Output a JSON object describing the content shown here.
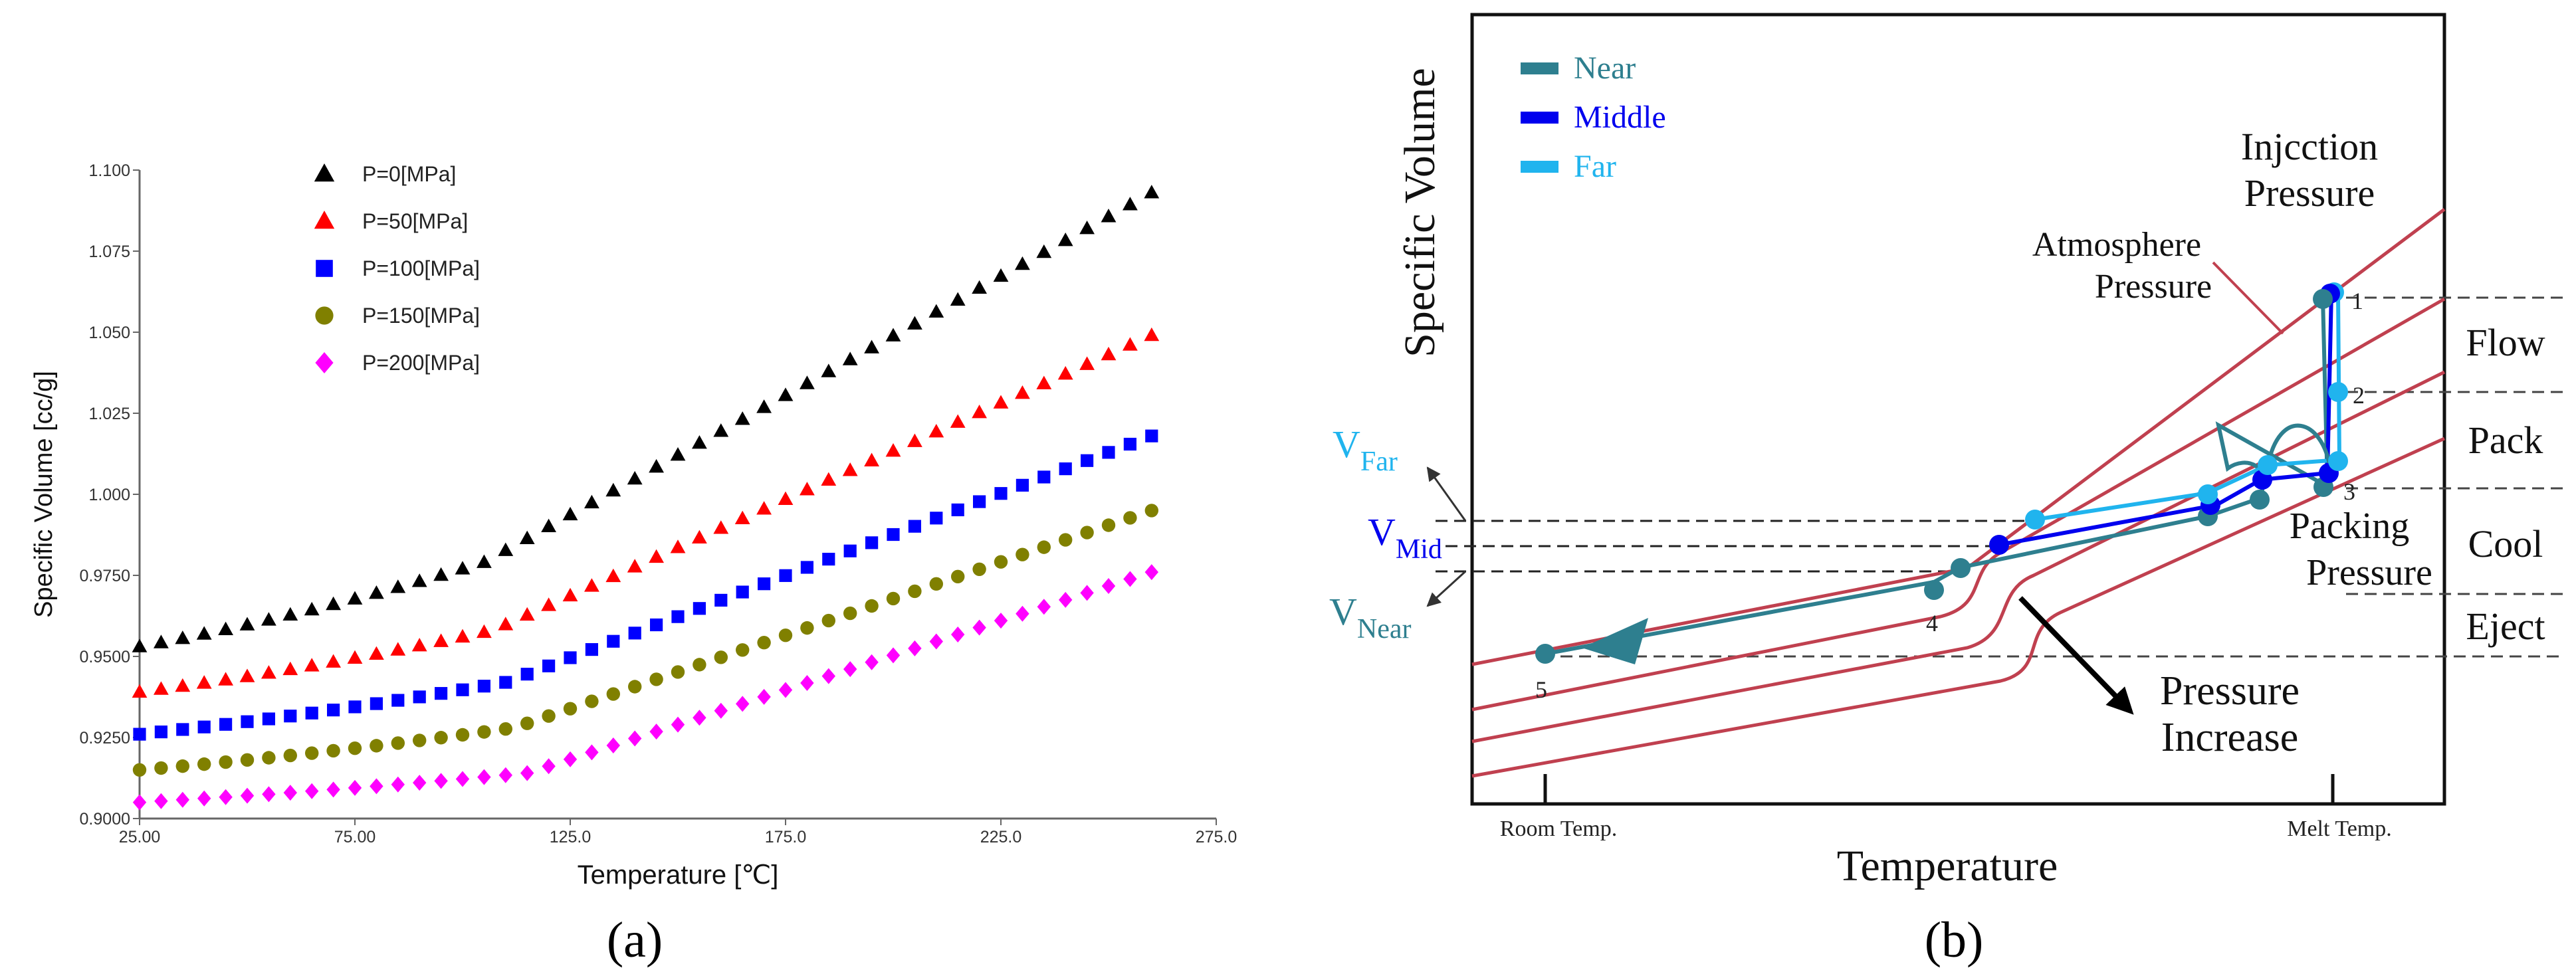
{
  "chart_data": [
    {
      "type": "scatter",
      "panel_label": "(a)",
      "xlabel": "Temperature [℃]",
      "ylabel": "Specific Volume [cc/g]",
      "xlim": [
        25,
        275
      ],
      "ylim": [
        0.9,
        1.1
      ],
      "x_ticks": [
        "25.00",
        "75.00",
        "125.0",
        "175.0",
        "225.0",
        "275.0"
      ],
      "x_tick_values": [
        25,
        75,
        125,
        175,
        225,
        275
      ],
      "y_ticks": [
        "0.9000",
        "0.9250",
        "0.9500",
        "0.9750",
        "1.000",
        "1.025",
        "1.050",
        "1.075",
        "1.100"
      ],
      "y_tick_values": [
        0.9,
        0.925,
        0.95,
        0.975,
        1.0,
        1.025,
        1.05,
        1.075,
        1.1
      ],
      "x_range": [
        25,
        260
      ],
      "x_step": 5,
      "legend_position": "top-left",
      "series": [
        {
          "name": "P=0[MPa]",
          "marker": "triangle",
          "color": "#000000",
          "v_start": 0.953,
          "v_knee": 0.979,
          "t_knee": 105,
          "v_end": 1.093
        },
        {
          "name": "P=50[MPa]",
          "marker": "triangle",
          "color": "#ff0000",
          "v_start": 0.939,
          "v_knee": 0.958,
          "t_knee": 107,
          "v_end": 1.049
        },
        {
          "name": "P=100[MPa]",
          "marker": "square",
          "color": "#0000ff",
          "v_start": 0.926,
          "v_knee": 0.942,
          "t_knee": 110,
          "v_end": 1.018
        },
        {
          "name": "P=150[MPa]",
          "marker": "circle",
          "color": "#808000",
          "v_start": 0.915,
          "v_knee": 0.928,
          "t_knee": 112,
          "v_end": 0.995
        },
        {
          "name": "P=200[MPa]",
          "marker": "diamond",
          "color": "#ff00ff",
          "v_start": 0.905,
          "v_knee": 0.914,
          "t_knee": 115,
          "v_end": 0.976
        }
      ]
    },
    {
      "type": "line",
      "panel_label": "(b)",
      "xlabel": "Temperature",
      "ylabel": "Specific Volume",
      "x_tick_labels": [
        "Room Temp.",
        "Melt Temp."
      ],
      "legend": [
        {
          "name": "Near",
          "color": "#2e7f8f"
        },
        {
          "name": "Middle",
          "color": "#0000ee"
        },
        {
          "name": "Far",
          "color": "#20b4ee"
        }
      ],
      "annotations": {
        "injection": [
          "Injcction",
          "Pressure"
        ],
        "atmosphere": [
          "Atmosphere",
          "Pressure"
        ],
        "packing": [
          "Packing",
          "Pressure"
        ],
        "pressure_increase": [
          "Pressure",
          "Increase"
        ],
        "phases": [
          "Flow",
          "Pack",
          "Cool",
          "Eject"
        ],
        "points": [
          "1",
          "2",
          "3",
          "4",
          "5"
        ],
        "v_far": {
          "main": "V",
          "sub": "Far"
        },
        "v_mid": {
          "main": "V",
          "sub": "Mid"
        },
        "v_near": {
          "main": "V",
          "sub": "Near"
        }
      }
    }
  ]
}
